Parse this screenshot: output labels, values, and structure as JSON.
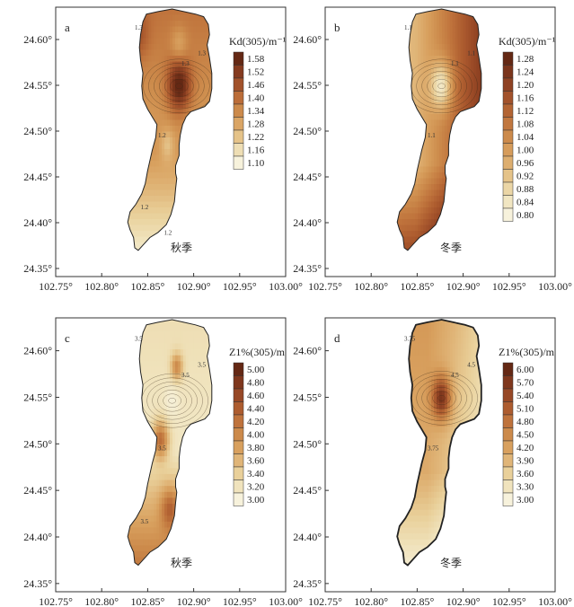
{
  "axes": {
    "x_ticks": [
      "102.75°",
      "102.80°",
      "102.85°",
      "102.90°",
      "102.95°",
      "103.00°"
    ],
    "y_ticks": [
      "24.60°",
      "24.55°",
      "24.50°",
      "24.45°",
      "24.40°",
      "24.35°"
    ]
  },
  "panels": [
    {
      "label": "a",
      "colorbar_title": "Kd(305)/m⁻¹",
      "colorbar_ticks": [
        "1.58",
        "1.52",
        "1.46",
        "1.40",
        "1.34",
        "1.28",
        "1.22",
        "1.16",
        "1.10"
      ],
      "season": "秋季",
      "contour_labels": [
        "1.3",
        "1.3",
        "1.3",
        "1.2",
        "1.2",
        "1.2"
      ],
      "pattern": "a"
    },
    {
      "label": "b",
      "colorbar_title": "Kd(305)/m⁻¹",
      "colorbar_ticks": [
        "1.28",
        "1.24",
        "1.20",
        "1.16",
        "1.12",
        "1.08",
        "1.04",
        "1.00",
        "0.96",
        "0.92",
        "0.88",
        "0.84",
        "0.80"
      ],
      "season": "冬季",
      "contour_labels": [
        "1.1",
        "1.1",
        "1.1",
        "1.1"
      ],
      "pattern": "b"
    },
    {
      "label": "c",
      "colorbar_title": "Z1%(305)/m",
      "colorbar_ticks": [
        "5.00",
        "4.80",
        "4.60",
        "4.40",
        "4.20",
        "4.00",
        "3.80",
        "3.60",
        "3.40",
        "3.20",
        "3.00"
      ],
      "season": "秋季",
      "contour_labels": [
        "3.5",
        "3.5",
        "3.5",
        "3.5",
        "3.5"
      ],
      "pattern": "c"
    },
    {
      "label": "d",
      "colorbar_title": "Z1%(305)/m",
      "colorbar_ticks": [
        "6.00",
        "5.70",
        "5.40",
        "5.10",
        "4.80",
        "4.50",
        "4.20",
        "3.90",
        "3.60",
        "3.30",
        "3.00"
      ],
      "season": "冬季",
      "contour_labels": [
        "3.75",
        "4.5",
        "4.5",
        "3.75"
      ],
      "pattern": "d"
    }
  ],
  "colors": {
    "ramp": [
      "#f7f2dc",
      "#f0e3bd",
      "#e9d09a",
      "#e0b578",
      "#d8a05e",
      "#cc8a4b",
      "#bf733c",
      "#ad5c2f",
      "#974826",
      "#7f371d",
      "#642814"
    ]
  }
}
